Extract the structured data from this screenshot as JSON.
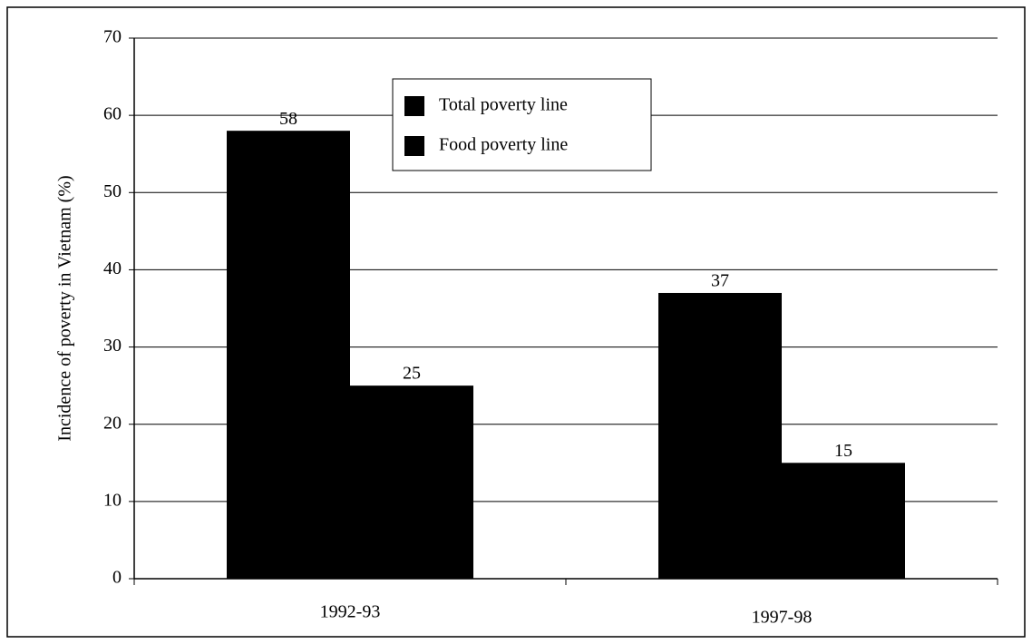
{
  "chart_data": {
    "type": "bar",
    "y_label": "Incidence of poverty in Vietnam (%)",
    "categories": [
      "1992-93",
      "1997-98"
    ],
    "series": [
      {
        "name": "Total poverty line",
        "color": "#000000",
        "values": [
          58,
          37
        ]
      },
      {
        "name": "Food poverty line",
        "color": "#000000",
        "values": [
          25,
          15
        ]
      }
    ],
    "ylim": [
      0,
      70
    ],
    "yticks": [
      0,
      10,
      20,
      30,
      40,
      50,
      60,
      70
    ],
    "grid": true
  }
}
